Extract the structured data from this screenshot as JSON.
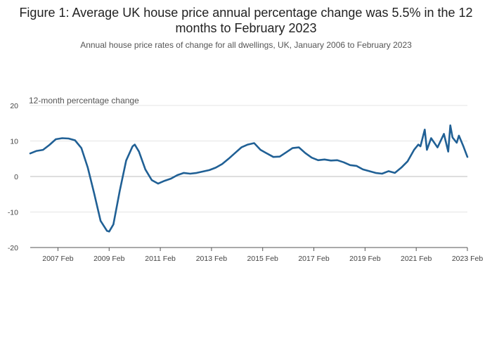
{
  "title": "Figure 1: Average UK house price annual percentage change was 5.5% in the 12 months to February 2023",
  "subtitle": "Annual house price rates of change for all dwellings, UK, January 2006 to February 2023",
  "chart_data": {
    "type": "line",
    "ylabel": "12-month percentage change",
    "ylim": [
      -20,
      20
    ],
    "yticks": [
      20,
      10,
      0,
      -10,
      -20
    ],
    "xticks": [
      "2007 Feb",
      "2009 Feb",
      "2011 Feb",
      "2013 Feb",
      "2015 Feb",
      "2017 Feb",
      "2019 Feb",
      "2021 Feb",
      "2023 Feb"
    ],
    "x_start": "2006 Jan",
    "x_end": "2023 Feb",
    "grid": true,
    "series": [
      {
        "color": "#206095",
        "x": [
          "2006-01",
          "2006-04",
          "2006-07",
          "2006-10",
          "2007-01",
          "2007-04",
          "2007-07",
          "2007-10",
          "2008-01",
          "2008-04",
          "2008-07",
          "2008-10",
          "2009-01",
          "2009-02",
          "2009-04",
          "2009-07",
          "2009-10",
          "2010-01",
          "2010-02",
          "2010-04",
          "2010-07",
          "2010-10",
          "2011-01",
          "2011-04",
          "2011-07",
          "2011-10",
          "2012-01",
          "2012-04",
          "2012-07",
          "2012-10",
          "2013-01",
          "2013-04",
          "2013-07",
          "2013-10",
          "2014-01",
          "2014-04",
          "2014-07",
          "2014-10",
          "2015-01",
          "2015-04",
          "2015-07",
          "2015-10",
          "2016-01",
          "2016-04",
          "2016-07",
          "2016-10",
          "2017-01",
          "2017-04",
          "2017-07",
          "2017-10",
          "2018-01",
          "2018-04",
          "2018-07",
          "2018-10",
          "2019-01",
          "2019-04",
          "2019-07",
          "2019-10",
          "2020-01",
          "2020-04",
          "2020-07",
          "2020-10",
          "2021-01",
          "2021-03",
          "2021-04",
          "2021-06",
          "2021-07",
          "2021-09",
          "2021-12",
          "2022-03",
          "2022-05",
          "2022-06",
          "2022-07",
          "2022-09",
          "2022-10",
          "2022-12",
          "2023-02"
        ],
        "values": [
          6.5,
          7.2,
          7.5,
          8.9,
          10.5,
          10.8,
          10.7,
          10.2,
          8.0,
          2.5,
          -4.8,
          -12.5,
          -15.3,
          -15.5,
          -13.5,
          -4.0,
          4.5,
          8.5,
          9.0,
          7.0,
          2.0,
          -1.0,
          -2.0,
          -1.2,
          -0.6,
          0.4,
          1.0,
          0.8,
          1.0,
          1.4,
          1.8,
          2.5,
          3.5,
          5.0,
          6.6,
          8.2,
          9.0,
          9.4,
          7.5,
          6.5,
          5.5,
          5.6,
          6.8,
          8.0,
          8.2,
          6.6,
          5.3,
          4.6,
          4.8,
          4.5,
          4.6,
          4.0,
          3.2,
          3.0,
          2.0,
          1.5,
          1.0,
          0.8,
          1.5,
          1.0,
          2.5,
          4.3,
          7.5,
          9.0,
          8.5,
          13.2,
          7.5,
          10.8,
          8.2,
          12.0,
          7.0,
          14.4,
          11.0,
          9.5,
          11.5,
          8.7,
          5.5
        ]
      }
    ]
  }
}
